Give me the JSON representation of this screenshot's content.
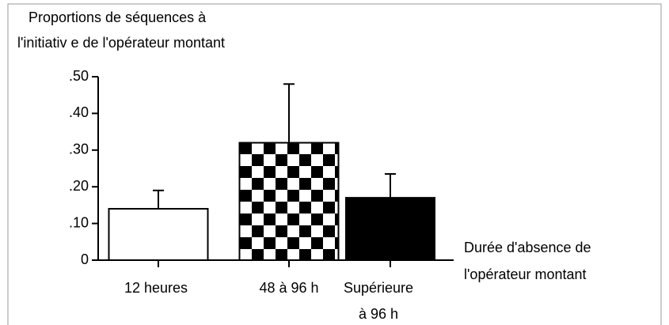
{
  "chart_data": {
    "type": "bar",
    "ylabel": [
      "Proportions de séquences à",
      "l'initiativ e de l'opérateur montant"
    ],
    "xlabel": [
      "Durée d'absence de",
      "l'opérateur montant"
    ],
    "categories": [
      [
        "12 heures"
      ],
      [
        "48 à 96 h"
      ],
      [
        "Supérieure",
        "à 96 h"
      ]
    ],
    "values": [
      0.14,
      0.32,
      0.17
    ],
    "errors": [
      0.05,
      0.16,
      0.065
    ],
    "fills": [
      "white",
      "checker",
      "black"
    ],
    "ylim": [
      0,
      0.5
    ],
    "yticks": [
      0,
      {
        "value": 0.1,
        "label": ".10"
      },
      {
        "value": 0.2,
        "label": ".20"
      },
      {
        "value": 0.3,
        "label": ".30"
      },
      {
        "value": 0.4,
        "label": ".40"
      },
      {
        "value": 0.5,
        "label": ".50"
      }
    ]
  }
}
